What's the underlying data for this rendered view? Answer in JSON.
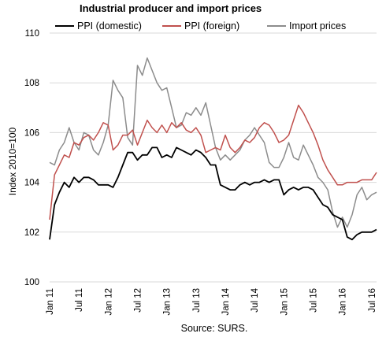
{
  "chart_data": {
    "type": "line",
    "title": "Industrial producer and import prices",
    "ylabel": "Index 2010=100",
    "xlabel": "",
    "source": "Source: SURS.",
    "ylim": [
      100,
      110
    ],
    "yticks": [
      "100",
      "102",
      "104",
      "106",
      "108",
      "110"
    ],
    "xticks": [
      "Jan 11",
      "Jul 11",
      "Jan 12",
      "Jul 12",
      "Jan 13",
      "Jul 13",
      "Jan 14",
      "Jul 14",
      "Jan 15",
      "Jul 15",
      "Jan 16",
      "Jul 16"
    ],
    "grid": "horizontal",
    "legend": "top",
    "start": "Jan 11",
    "frequency": "monthly",
    "series": [
      {
        "name": "PPI (domestic)",
        "color": "#000000",
        "values": [
          101.7,
          103.1,
          103.6,
          104.0,
          103.8,
          104.2,
          104.0,
          104.2,
          104.2,
          104.1,
          103.9,
          103.9,
          103.9,
          103.8,
          104.2,
          104.7,
          105.2,
          105.2,
          104.9,
          105.1,
          105.1,
          105.4,
          105.4,
          105.0,
          105.1,
          105.0,
          105.4,
          105.3,
          105.2,
          105.1,
          105.3,
          105.2,
          105.0,
          104.7,
          104.7,
          103.9,
          103.8,
          103.7,
          103.7,
          103.9,
          104.0,
          103.9,
          104.0,
          104.0,
          104.1,
          104.0,
          104.1,
          104.1,
          103.5,
          103.7,
          103.8,
          103.7,
          103.8,
          103.8,
          103.7,
          103.4,
          103.1,
          103.0,
          102.7,
          102.6,
          102.5,
          101.8,
          101.7,
          101.9,
          102.0,
          102.0,
          102.0,
          102.1
        ]
      },
      {
        "name": "PPI (foreign)",
        "color": "#c0504d",
        "values": [
          102.5,
          104.3,
          104.7,
          105.1,
          105.0,
          105.6,
          105.5,
          105.8,
          105.9,
          105.7,
          106.0,
          106.4,
          106.3,
          105.3,
          105.5,
          105.9,
          105.9,
          106.1,
          105.5,
          106.0,
          106.5,
          106.2,
          106.0,
          106.3,
          106.0,
          106.4,
          106.2,
          106.4,
          106.1,
          106.0,
          106.2,
          105.9,
          105.2,
          105.3,
          105.4,
          105.3,
          105.9,
          105.4,
          105.2,
          105.4,
          105.7,
          105.6,
          105.8,
          106.2,
          106.4,
          106.3,
          106.0,
          105.6,
          105.7,
          105.9,
          106.5,
          107.1,
          106.8,
          106.4,
          106.0,
          105.5,
          104.9,
          104.5,
          104.2,
          103.9,
          103.9,
          104.0,
          104.0,
          104.0,
          104.1,
          104.1,
          104.1,
          104.4
        ]
      },
      {
        "name": "Import prices",
        "color": "#8c8c8c",
        "values": [
          104.8,
          104.7,
          105.3,
          105.6,
          106.2,
          105.6,
          105.3,
          106.0,
          105.9,
          105.3,
          105.1,
          105.6,
          106.3,
          108.1,
          107.7,
          107.4,
          105.8,
          105.5,
          108.7,
          108.3,
          109.0,
          108.5,
          108.0,
          107.7,
          107.8,
          107.0,
          106.2,
          106.3,
          106.8,
          106.7,
          107.0,
          106.7,
          107.2,
          106.3,
          105.4,
          104.9,
          105.1,
          104.9,
          105.1,
          105.3,
          105.7,
          105.9,
          106.2,
          105.9,
          105.6,
          104.8,
          104.6,
          104.6,
          105.0,
          105.6,
          105.0,
          104.9,
          105.5,
          105.1,
          104.7,
          104.2,
          104.0,
          103.7,
          102.8,
          102.2,
          102.6,
          102.2,
          102.7,
          103.5,
          103.8,
          103.3,
          103.5,
          103.6
        ]
      }
    ]
  }
}
